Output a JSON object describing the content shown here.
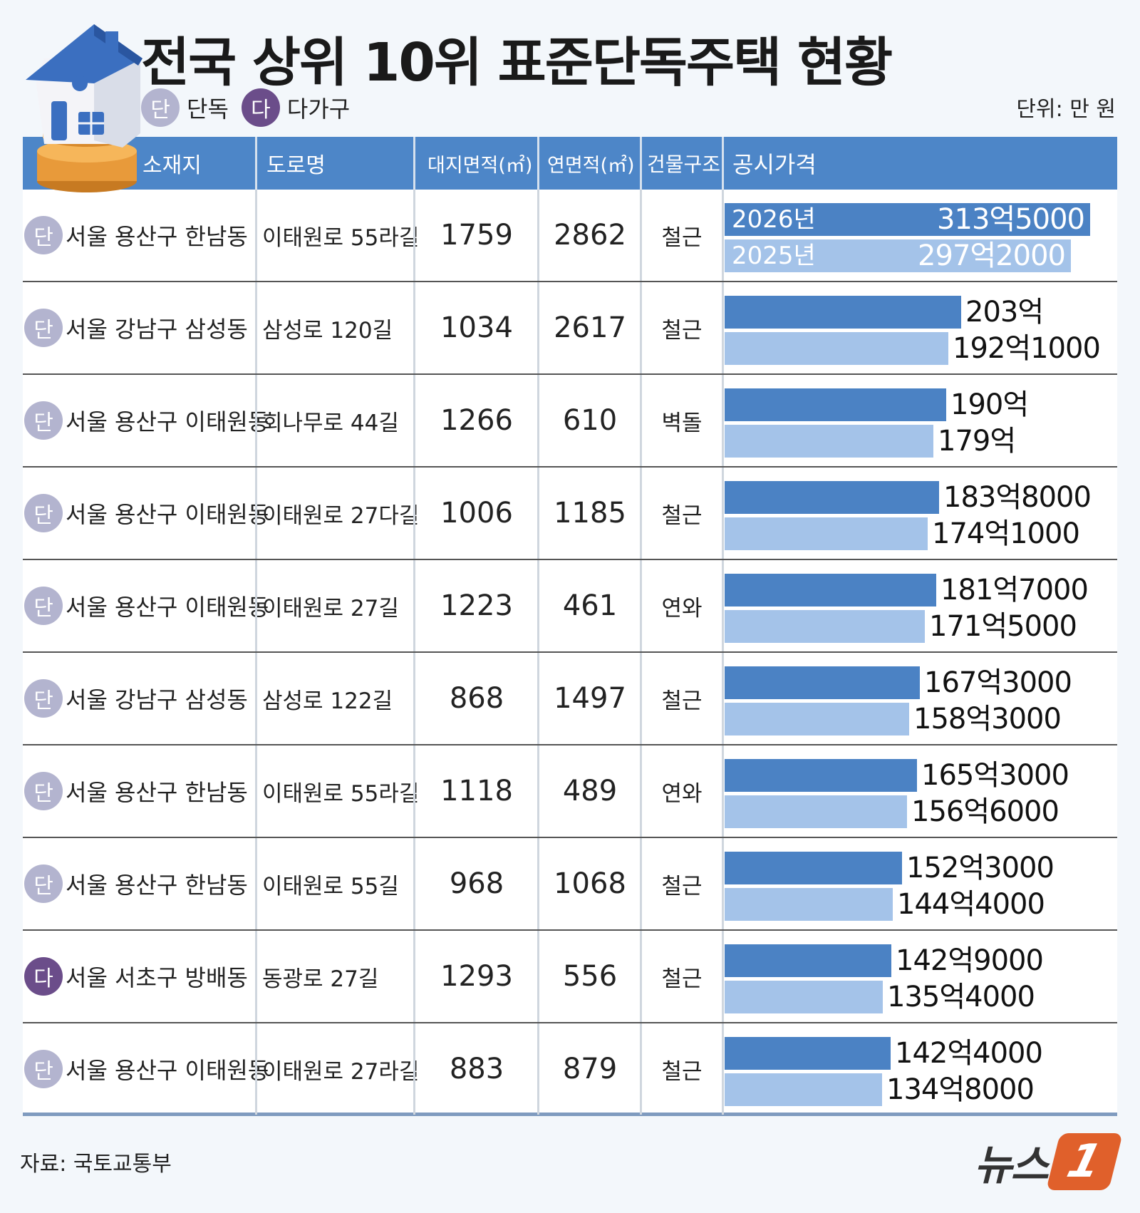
{
  "title": "전국 상위 10위 표준단독주택 현황",
  "legend": {
    "solo_badge": "단",
    "solo_label": "단독",
    "multi_badge": "다",
    "multi_label": "다가구"
  },
  "unit": "단위: 만 원",
  "headers": {
    "location": "소재지",
    "road": "도로명",
    "land_area": "대지면적(㎡)",
    "floor_area": "연면적(㎡)",
    "structure": "건물구조",
    "price": "공시가격"
  },
  "year_labels": {
    "y2026": "2026년",
    "y2025": "2025년"
  },
  "rows": [
    {
      "type": "단",
      "location": "서울 용산구 한남동",
      "road": "이태원로 55라길",
      "land": "1759",
      "floor": "2862",
      "structure": "철근",
      "p2026": "313억5000",
      "p2025": "297억2000"
    },
    {
      "type": "단",
      "location": "서울 강남구 삼성동",
      "road": "삼성로 120길",
      "land": "1034",
      "floor": "2617",
      "structure": "철근",
      "p2026": "203억",
      "p2025": "192억1000"
    },
    {
      "type": "단",
      "location": "서울 용산구 이태원동",
      "road": "회나무로 44길",
      "land": "1266",
      "floor": "610",
      "structure": "벽돌",
      "p2026": "190억",
      "p2025": "179억"
    },
    {
      "type": "단",
      "location": "서울 용산구 이태원동",
      "road": "이태원로 27다길",
      "land": "1006",
      "floor": "1185",
      "structure": "철근",
      "p2026": "183억8000",
      "p2025": "174억1000"
    },
    {
      "type": "단",
      "location": "서울 용산구 이태원동",
      "road": "이태원로 27길",
      "land": "1223",
      "floor": "461",
      "structure": "연와",
      "p2026": "181억7000",
      "p2025": "171억5000"
    },
    {
      "type": "단",
      "location": "서울 강남구 삼성동",
      "road": "삼성로 122길",
      "land": "868",
      "floor": "1497",
      "structure": "철근",
      "p2026": "167억3000",
      "p2025": "158억3000"
    },
    {
      "type": "단",
      "location": "서울 용산구 한남동",
      "road": "이태원로 55라길",
      "land": "1118",
      "floor": "489",
      "structure": "연와",
      "p2026": "165억3000",
      "p2025": "156억6000"
    },
    {
      "type": "단",
      "location": "서울 용산구 한남동",
      "road": "이태원로 55길",
      "land": "968",
      "floor": "1068",
      "structure": "철근",
      "p2026": "152억3000",
      "p2025": "144억4000"
    },
    {
      "type": "다",
      "location": "서울 서초구 방배동",
      "road": "동광로 27길",
      "land": "1293",
      "floor": "556",
      "structure": "철근",
      "p2026": "142억9000",
      "p2025": "135억4000"
    },
    {
      "type": "단",
      "location": "서울 용산구 이태원동",
      "road": "이태원로 27라길",
      "land": "883",
      "floor": "879",
      "structure": "철근",
      "p2026": "142억4000",
      "p2025": "134억8000"
    }
  ],
  "chart_data": {
    "type": "bar",
    "categories": [
      "서울 용산구 한남동",
      "서울 강남구 삼성동",
      "서울 용산구 이태원동",
      "서울 용산구 이태원동",
      "서울 용산구 이태원동",
      "서울 강남구 삼성동",
      "서울 용산구 한남동",
      "서울 용산구 한남동",
      "서울 서초구 방배동",
      "서울 용산구 이태원동"
    ],
    "series": [
      {
        "name": "2026년",
        "values": [
          3135000,
          2030000,
          1900000,
          1838000,
          1817000,
          1673000,
          1653000,
          1523000,
          1429000,
          1424000
        ]
      },
      {
        "name": "2025년",
        "values": [
          2972000,
          1921000,
          1790000,
          1741000,
          1715000,
          1583000,
          1566000,
          1444000,
          1354000,
          1348000
        ]
      }
    ],
    "ylabel": "공시가격",
    "unit": "만 원",
    "color_2026": "#4b82c4",
    "color_2025": "#a4c3e9"
  },
  "source": "자료: 국토교통부",
  "logo": {
    "text": "뉴스",
    "mark": "1"
  }
}
